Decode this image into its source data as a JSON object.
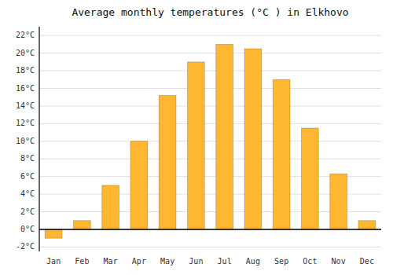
{
  "chart_data": {
    "type": "bar",
    "title": "Average monthly temperatures (°C ) in Elkhovo",
    "categories": [
      "Jan",
      "Feb",
      "Mar",
      "Apr",
      "May",
      "Jun",
      "Jul",
      "Aug",
      "Sep",
      "Oct",
      "Nov",
      "Dec"
    ],
    "values": [
      -1.0,
      1.0,
      5.0,
      10.0,
      15.2,
      19.0,
      21.0,
      20.5,
      17.0,
      11.5,
      6.3,
      1.0
    ],
    "color": "#FFB732",
    "ylim": [
      -2.5,
      23
    ],
    "yticks": [
      {
        "value": -2,
        "label": "-2°C"
      },
      {
        "value": 0,
        "label": "0°C"
      },
      {
        "value": 2,
        "label": "2°C"
      },
      {
        "value": 4,
        "label": "4°C"
      },
      {
        "value": 6,
        "label": "6°C"
      },
      {
        "value": 8,
        "label": "8°C"
      },
      {
        "value": 10,
        "label": "10°C"
      },
      {
        "value": 12,
        "label": "12°C"
      },
      {
        "value": 14,
        "label": "14°C"
      },
      {
        "value": 16,
        "label": "16°C"
      },
      {
        "value": 18,
        "label": "18°C"
      },
      {
        "value": 20,
        "label": "20°C"
      },
      {
        "value": 22,
        "label": "22°C"
      }
    ],
    "grid": true
  }
}
